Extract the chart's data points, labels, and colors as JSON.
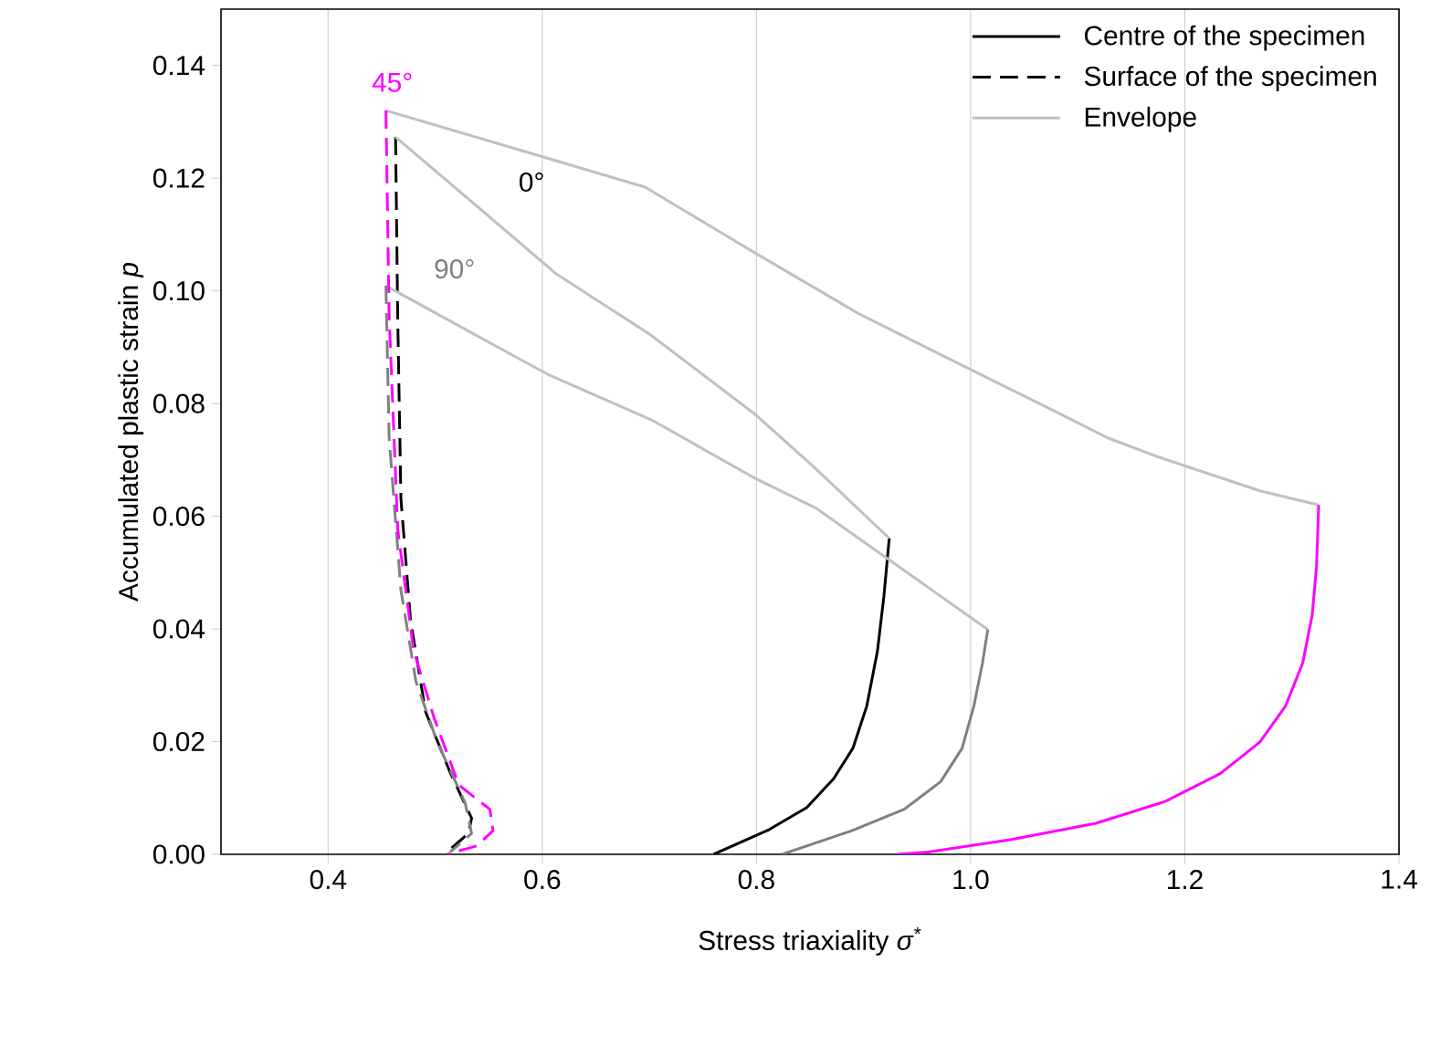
{
  "chart_data": {
    "type": "line",
    "xlabel": "Stress triaxiality *σ*$^{*}$",
    "ylabel": "Accumulated plastic strain *p*",
    "xlim": [
      0.3,
      1.4
    ],
    "ylim": [
      0,
      0.15
    ],
    "xticks": [
      {
        "value": 0.4,
        "label": "0.4"
      },
      {
        "value": 0.6,
        "label": "0.6"
      },
      {
        "value": 0.8,
        "label": "0.8"
      },
      {
        "value": 1.0,
        "label": "1.0"
      },
      {
        "value": 1.2,
        "label": "1.2"
      },
      {
        "value": 1.4,
        "label": "1.4"
      }
    ],
    "yticks": [
      {
        "value": 0,
        "label": "0.00"
      },
      {
        "value": 0.02,
        "label": "0.02"
      },
      {
        "value": 0.04,
        "label": "0.04"
      },
      {
        "value": 0.06,
        "label": "0.06"
      },
      {
        "value": 0.08,
        "label": "0.08"
      },
      {
        "value": 0.1,
        "label": "0.10"
      },
      {
        "value": 0.12,
        "label": "0.12"
      },
      {
        "value": 0.14,
        "label": "0.14"
      }
    ],
    "grid": "x",
    "legend": "top right",
    "series": [
      {
        "name": "Centre of the specimen",
        "color": "#000000",
        "line_style": "solid",
        "x": [
          0.76,
          0.812,
          0.847,
          0.872,
          0.89,
          0.903,
          0.913,
          0.919,
          0.924
        ],
        "values": [
          0.0,
          0.0044,
          0.0083,
          0.0134,
          0.0188,
          0.0263,
          0.0361,
          0.0458,
          0.0561
        ]
      },
      {
        "name": "Surface of the specimen",
        "color": "#000000",
        "line_style": "dashed",
        "x": [
          0.463,
          0.465,
          0.468,
          0.477,
          0.491,
          0.514,
          0.534,
          0.531,
          0.511
        ],
        "values": [
          0.1273,
          0.0955,
          0.0631,
          0.0415,
          0.0253,
          0.0145,
          0.0064,
          0.0037,
          0.0004
        ]
      },
      {
        "name": "Envelope",
        "color": "#c0c0c0",
        "line_style": "solid",
        "x": [
          0.454,
          0.57,
          0.696,
          0.798,
          0.895,
          0.997,
          1.083,
          1.128,
          1.174,
          1.27,
          1.325
        ],
        "values": [
          0.132,
          0.1255,
          0.1184,
          0.1068,
          0.096,
          0.0863,
          0.0782,
          0.0739,
          0.0706,
          0.0645,
          0.062
        ]
      },
      {
        "color": "#c0c0c0",
        "line_style": "solid",
        "x": [
          0.463,
          0.57,
          0.613,
          0.701,
          0.798,
          0.855,
          0.915,
          0.924
        ],
        "values": [
          0.1273,
          0.11,
          0.103,
          0.0922,
          0.0782,
          0.0685,
          0.0577,
          0.0561
        ]
      },
      {
        "color": "#c0c0c0",
        "line_style": "solid",
        "x": [
          0.454,
          0.57,
          0.605,
          0.702,
          0.798,
          0.855,
          1.016
        ],
        "values": [
          0.1009,
          0.0888,
          0.0852,
          0.0771,
          0.0668,
          0.0615,
          0.0399
        ]
      },
      {
        "color": "#808080",
        "line_style": "solid",
        "x": [
          0.824,
          0.889,
          0.938,
          0.972,
          0.992,
          1.003,
          1.011,
          1.016
        ],
        "values": [
          0.0,
          0.0042,
          0.008,
          0.0129,
          0.0188,
          0.0263,
          0.0339,
          0.0399
        ]
      },
      {
        "color": "#ff00ff",
        "line_style": "solid",
        "x": [
          0.932,
          0.96,
          1.037,
          1.117,
          1.182,
          1.233,
          1.27,
          1.294,
          1.31,
          1.319,
          1.323,
          1.325
        ],
        "values": [
          0.0,
          0.0004,
          0.0026,
          0.0055,
          0.0094,
          0.0143,
          0.0199,
          0.0263,
          0.0339,
          0.0425,
          0.0512,
          0.062
        ]
      },
      {
        "color": "#808080",
        "line_style": "dashed",
        "x": [
          0.454,
          0.457,
          0.468,
          0.482,
          0.502,
          0.528,
          0.534,
          0.514
        ],
        "values": [
          0.1009,
          0.0739,
          0.0469,
          0.0307,
          0.0199,
          0.0091,
          0.0037,
          0.0004
        ]
      },
      {
        "color": "#ff00ff",
        "line_style": "dashed",
        "x": [
          0.454,
          0.457,
          0.465,
          0.48,
          0.499,
          0.522,
          0.551,
          0.554,
          0.539,
          0.511
        ],
        "values": [
          0.132,
          0.0955,
          0.0577,
          0.0361,
          0.0242,
          0.0123,
          0.008,
          0.0042,
          0.0015,
          0.0
        ]
      }
    ],
    "annotations": [
      "45°",
      "0°",
      "90°"
    ]
  }
}
